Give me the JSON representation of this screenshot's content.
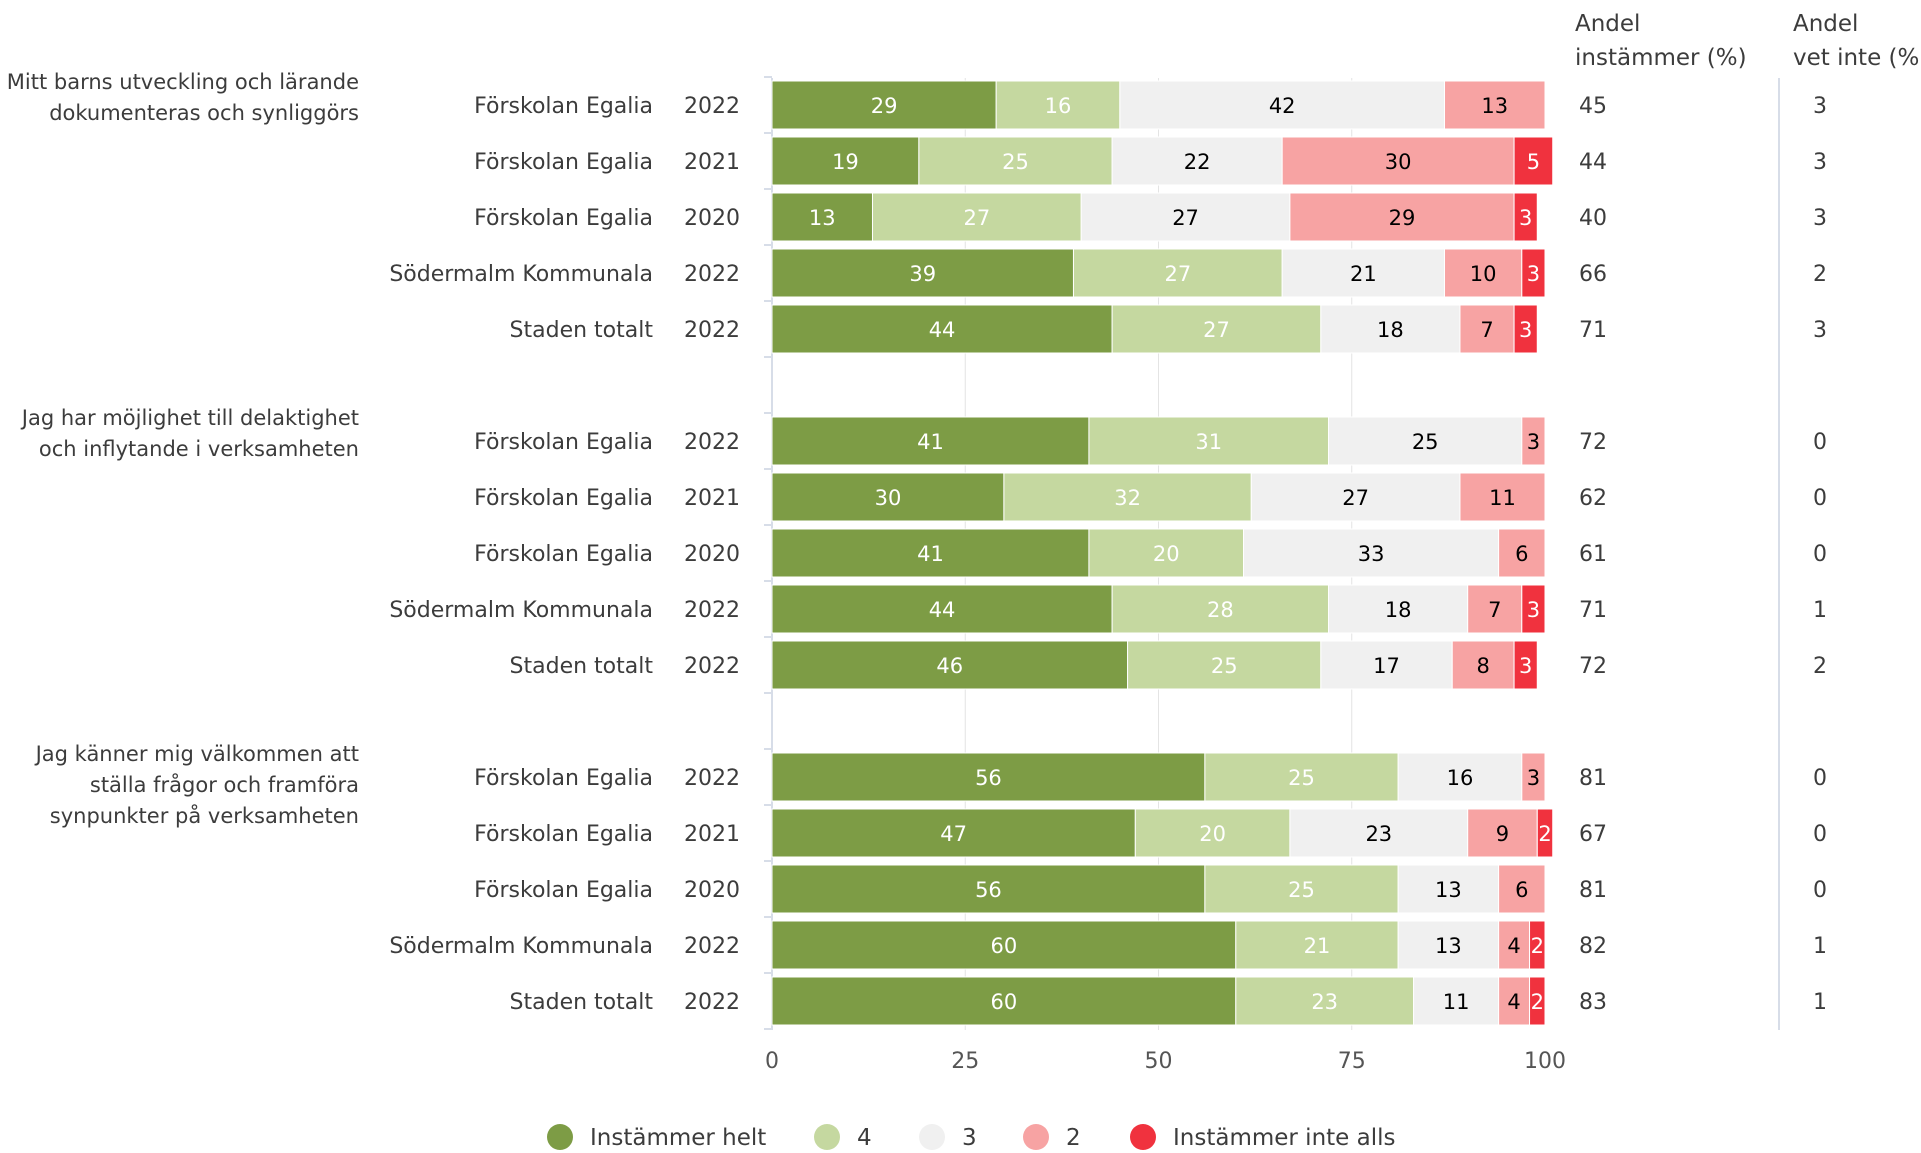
{
  "chart_data": {
    "type": "bar",
    "stacked": true,
    "orientation": "horizontal",
    "xlim": [
      0,
      100
    ],
    "xticks": [
      "0",
      "25",
      "50",
      "75",
      "100"
    ],
    "grid": true,
    "legend_position": "bottom",
    "side_headers": {
      "agree": "Andel instämmer (%)",
      "agree_lines": [
        "Andel",
        "instämmer (%)"
      ],
      "dontknow": "Andel vet inte (%)",
      "dontknow_lines": [
        "Andel",
        "vet inte (%)"
      ]
    },
    "series": [
      {
        "name": "Instämmer helt",
        "color": "#7d9c45",
        "label_color": "#ffffff"
      },
      {
        "name": "4",
        "color": "#c5d8a0",
        "label_color": "#ffffff"
      },
      {
        "name": "3",
        "color": "#f0f0f0",
        "label_color": "#000000"
      },
      {
        "name": "2",
        "color": "#f7a3a3",
        "label_color": "#000000"
      },
      {
        "name": "Instämmer inte alls",
        "color": "#f0323e",
        "label_color": "#ffffff"
      }
    ],
    "groups": [
      {
        "question": "Mitt barns utveckling och lärande dokumenteras och synliggörs",
        "question_lines": [
          "Mitt barns utveckling och lärande",
          "dokumenteras och synliggörs"
        ],
        "rows": [
          {
            "unit": "Förskolan Egalia",
            "year": "2022",
            "values": [
              29,
              16,
              42,
              13,
              0
            ],
            "agree": 45,
            "dontknow": 3
          },
          {
            "unit": "Förskolan Egalia",
            "year": "2021",
            "values": [
              19,
              25,
              22,
              30,
              5
            ],
            "agree": 44,
            "dontknow": 3
          },
          {
            "unit": "Förskolan Egalia",
            "year": "2020",
            "values": [
              13,
              27,
              27,
              29,
              3
            ],
            "agree": 40,
            "dontknow": 3
          },
          {
            "unit": "Södermalm Kommunala",
            "year": "2022",
            "values": [
              39,
              27,
              21,
              10,
              3
            ],
            "agree": 66,
            "dontknow": 2
          },
          {
            "unit": "Staden totalt",
            "year": "2022",
            "values": [
              44,
              27,
              18,
              7,
              3
            ],
            "agree": 71,
            "dontknow": 3
          }
        ]
      },
      {
        "question": "Jag har möjlighet till delaktighet och inflytande i verksamheten",
        "question_lines": [
          "Jag har möjlighet till delaktighet",
          "och inflytande i verksamheten"
        ],
        "rows": [
          {
            "unit": "Förskolan Egalia",
            "year": "2022",
            "values": [
              41,
              31,
              25,
              3,
              0
            ],
            "agree": 72,
            "dontknow": 0
          },
          {
            "unit": "Förskolan Egalia",
            "year": "2021",
            "values": [
              30,
              32,
              27,
              11,
              0
            ],
            "agree": 62,
            "dontknow": 0
          },
          {
            "unit": "Förskolan Egalia",
            "year": "2020",
            "values": [
              41,
              20,
              33,
              6,
              0
            ],
            "agree": 61,
            "dontknow": 0
          },
          {
            "unit": "Södermalm Kommunala",
            "year": "2022",
            "values": [
              44,
              28,
              18,
              7,
              3
            ],
            "agree": 71,
            "dontknow": 1
          },
          {
            "unit": "Staden totalt",
            "year": "2022",
            "values": [
              46,
              25,
              17,
              8,
              3
            ],
            "agree": 72,
            "dontknow": 2
          }
        ]
      },
      {
        "question": "Jag känner mig välkommen att ställa frågor och framföra synpunkter på verksamheten",
        "question_lines": [
          "Jag känner mig välkommen att",
          "ställa frågor och framföra",
          "synpunkter på verksamheten"
        ],
        "rows": [
          {
            "unit": "Förskolan Egalia",
            "year": "2022",
            "values": [
              56,
              25,
              16,
              3,
              0
            ],
            "agree": 81,
            "dontknow": 0
          },
          {
            "unit": "Förskolan Egalia",
            "year": "2021",
            "values": [
              47,
              20,
              23,
              9,
              2
            ],
            "agree": 67,
            "dontknow": 0
          },
          {
            "unit": "Förskolan Egalia",
            "year": "2020",
            "values": [
              56,
              25,
              13,
              6,
              0
            ],
            "agree": 81,
            "dontknow": 0
          },
          {
            "unit": "Södermalm Kommunala",
            "year": "2022",
            "values": [
              60,
              21,
              13,
              4,
              2
            ],
            "agree": 82,
            "dontknow": 1
          },
          {
            "unit": "Staden totalt",
            "year": "2022",
            "values": [
              60,
              23,
              11,
              4,
              2
            ],
            "agree": 83,
            "dontknow": 1
          }
        ]
      }
    ]
  }
}
